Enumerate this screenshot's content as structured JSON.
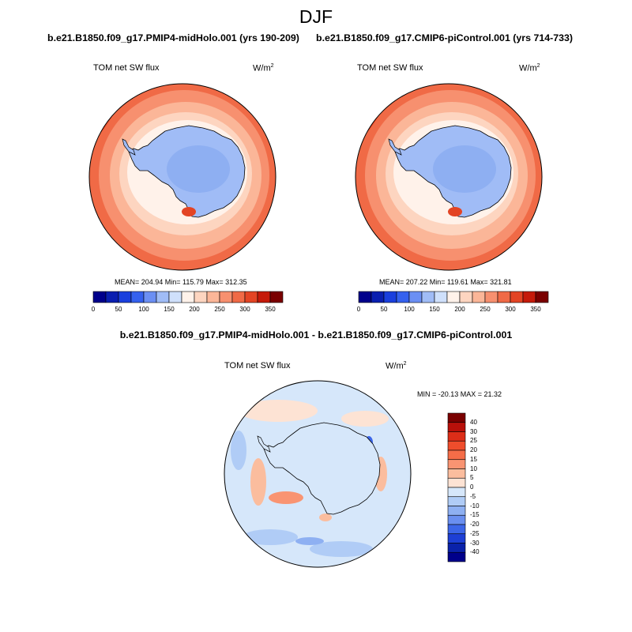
{
  "figure": {
    "title": "DJF",
    "left_run": "b.e21.B1850.f09_g17.PMIP4-midHolo.001 (yrs 190-209)",
    "right_run": "b.e21.B1850.f09_g17.CMIP6-piControl.001 (yrs 714-733)",
    "diff_title": "b.e21.B1850.f09_g17.PMIP4-midHolo.001 - b.e21.B1850.f09_g17.CMIP6-piControl.001"
  },
  "panels": {
    "left": {
      "variable": "TOM net SW flux",
      "units_base": "W/m",
      "units_exp": "2",
      "stats": "MEAN= 204.94  Min= 115.79  Max= 312.35"
    },
    "right": {
      "variable": "TOM net SW flux",
      "units_base": "W/m",
      "units_exp": "2",
      "stats": "MEAN= 207.22  Min= 119.61  Max= 321.81"
    },
    "diff": {
      "variable": "TOM net SW flux",
      "units_base": "W/m",
      "units_exp": "2",
      "stats": "MIN = -20.13 MAX =  21.32"
    }
  },
  "colorbars": {
    "main": {
      "labels": [
        "0",
        "50",
        "100",
        "150",
        "200",
        "250",
        "300",
        "350"
      ],
      "colors": [
        "#00008b",
        "#0a1fb0",
        "#1a3fdd",
        "#3561ee",
        "#6b8ff3",
        "#a0bcf6",
        "#cfe0fb",
        "#fff2ea",
        "#fdd5c0",
        "#fbb698",
        "#f7906f",
        "#f06a46",
        "#e34424",
        "#c51a0a",
        "#7a0000"
      ]
    },
    "diff": {
      "labels": [
        "40",
        "30",
        "25",
        "20",
        "15",
        "10",
        "5",
        "0",
        "-5",
        "-10",
        "-15",
        "-20",
        "-25",
        "-30",
        "-40"
      ],
      "colors": [
        "#7a0000",
        "#b8100a",
        "#dc2d18",
        "#ef4d2c",
        "#f56d48",
        "#f99472",
        "#fbbd9e",
        "#fde3d4",
        "#d6e7fa",
        "#b0ccf6",
        "#8eb0f2",
        "#6a8ff0",
        "#3c66e8",
        "#1d3fd5",
        "#0a22aa",
        "#00008b"
      ]
    }
  },
  "maps": {
    "ocean_colors": [
      "#f06a46",
      "#f7906f",
      "#fbb698",
      "#fdd5c0",
      "#fff2ea"
    ],
    "ice_color": "#a0bcf6",
    "interior_color": "#8eaff2",
    "diff_ocean": "#d6e7fa",
    "diff_pos": [
      "#fde3d4",
      "#fbbd9e",
      "#f99472"
    ],
    "diff_neg": [
      "#b0ccf6",
      "#8eb0f2",
      "#3c66e8"
    ]
  }
}
